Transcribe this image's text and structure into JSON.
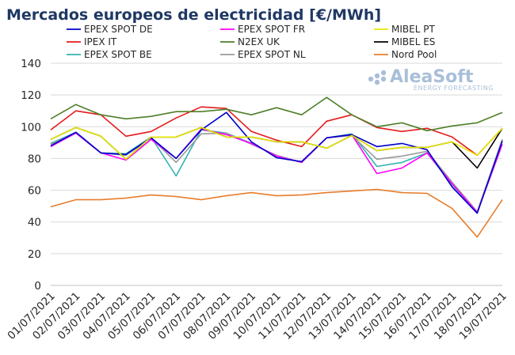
{
  "chart_data": {
    "type": "line",
    "title": "Mercados europeos de electricidad [€/MWh]",
    "xlabel": "",
    "ylabel": "",
    "ylim": [
      0,
      140
    ],
    "yticks": [
      0,
      20,
      40,
      60,
      80,
      100,
      120,
      140
    ],
    "grid": true,
    "legend_position": "top",
    "watermark": {
      "brand": "AleaSoft",
      "tagline": "ENERGY FORECASTING"
    },
    "categories": [
      "01/07/2021",
      "02/07/2021",
      "03/07/2021",
      "04/07/2021",
      "05/07/2021",
      "06/07/2021",
      "07/07/2021",
      "08/07/2021",
      "09/07/2021",
      "10/07/2021",
      "11/07/2021",
      "12/07/2021",
      "13/07/2021",
      "14/07/2021",
      "15/07/2021",
      "16/07/2021",
      "17/07/2021",
      "18/07/2021",
      "19/07/2021"
    ],
    "series": [
      {
        "name": "EPEX SPOT DE",
        "color": "#0000cc",
        "values": [
          88,
          96.5,
          83.5,
          82.5,
          93,
          80,
          98,
          109,
          90.5,
          80.5,
          78,
          93,
          95,
          87.5,
          89.5,
          85.5,
          62,
          45.5,
          91
        ]
      },
      {
        "name": "EPEX SPOT FR",
        "color": "#ff00ff",
        "values": [
          87.5,
          96,
          83.5,
          79,
          92,
          80,
          98.5,
          95,
          89.5,
          81.5,
          77.5,
          93,
          95,
          70.5,
          74,
          83.5,
          64,
          46,
          89
        ]
      },
      {
        "name": "MIBEL PT",
        "color": "#e8e800",
        "values": [
          92,
          99.5,
          94,
          79.5,
          93.5,
          93.5,
          99.5,
          93.5,
          93.5,
          90.5,
          90.5,
          86.5,
          94.5,
          85,
          87,
          87,
          90.5,
          82,
          99
        ]
      },
      {
        "name": "IPEX IT",
        "color": "#e41a1c",
        "values": [
          98,
          110,
          107.5,
          94,
          97,
          105.5,
          112.5,
          111.5,
          97,
          91.5,
          87.5,
          103.5,
          107.5,
          99.5,
          97,
          99,
          93.5,
          82,
          99
        ]
      },
      {
        "name": "N2EX UK",
        "color": "#4e7f2a",
        "values": [
          105,
          114,
          107.5,
          105,
          106.5,
          109.5,
          109.5,
          111,
          107.5,
          112,
          107.5,
          118.5,
          107.5,
          100,
          102.5,
          97.5,
          100.5,
          102.5,
          109
        ]
      },
      {
        "name": "MIBEL ES",
        "color": "#000000",
        "values": [
          92,
          99.5,
          94,
          79.5,
          93.5,
          93.5,
          99.5,
          93.5,
          93.5,
          90.5,
          90.5,
          86.5,
          94.5,
          85,
          87,
          87,
          90.5,
          74,
          99
        ]
      },
      {
        "name": "EPEX SPOT BE",
        "color": "#33b3b3",
        "values": [
          89.5,
          96.5,
          83.5,
          83,
          93.5,
          69,
          98,
          96,
          89.5,
          81.5,
          77.5,
          93,
          95.5,
          75,
          77.5,
          83.5,
          63.5,
          46,
          92
        ]
      },
      {
        "name": "EPEX SPOT NL",
        "color": "#999999",
        "values": [
          89,
          96,
          83.5,
          82,
          93,
          77.5,
          95.5,
          96,
          89,
          82,
          77.5,
          93,
          94.5,
          79.5,
          81.5,
          84.5,
          65,
          46.5,
          92
        ]
      },
      {
        "name": "Nord Pool",
        "color": "#e87d2c",
        "values": [
          49.5,
          54,
          54,
          55,
          57,
          56,
          54,
          56.5,
          58.5,
          56.5,
          57,
          58.5,
          59.5,
          60.5,
          58.5,
          58,
          48.5,
          30.5,
          54
        ]
      }
    ]
  }
}
